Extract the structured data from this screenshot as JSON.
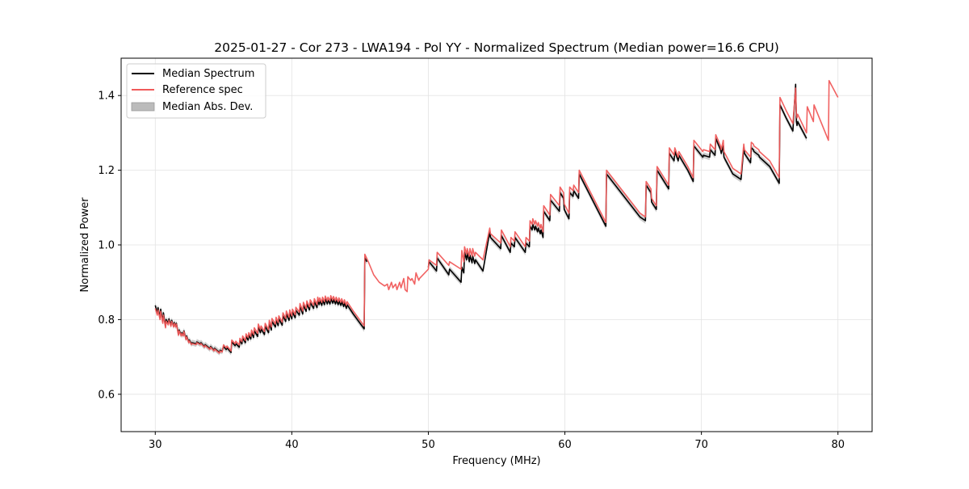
{
  "chart_data": {
    "type": "line",
    "title": "2025-01-27 - Cor 273 - LWA194 - Pol YY - Normalized Spectrum (Median power=16.6 CPU)",
    "xlabel": "Frequency (MHz)",
    "ylabel": "Normalized Power",
    "xlim": [
      27.5,
      82.5
    ],
    "ylim": [
      0.5,
      1.5
    ],
    "xticks": [
      30,
      40,
      50,
      60,
      70,
      80
    ],
    "yticks": [
      0.6,
      0.8,
      1.0,
      1.2,
      1.4
    ],
    "xtick_labels": [
      "30",
      "40",
      "50",
      "60",
      "70",
      "80"
    ],
    "ytick_labels": [
      "0.6",
      "0.8",
      "1.0",
      "1.2",
      "1.4"
    ],
    "grid": true,
    "legend_position": "top-left",
    "colors": {
      "median": "#000000",
      "reference": "#f05a5a",
      "mad": "#bbbbbb"
    },
    "legend": [
      {
        "label": "Median Spectrum",
        "style": "line",
        "color": "#000000"
      },
      {
        "label": "Reference spec",
        "style": "line",
        "color": "#f05a5a"
      },
      {
        "label": "Median Abs. Dev.",
        "style": "patch",
        "color": "#bbbbbb"
      }
    ],
    "series": [
      {
        "name": "Median Spectrum",
        "x": [
          30.0,
          30.15,
          30.2,
          30.35,
          30.4,
          30.55,
          30.6,
          30.75,
          30.8,
          30.95,
          31.0,
          31.15,
          31.2,
          31.35,
          31.4,
          31.5,
          31.55,
          31.7,
          31.75,
          31.9,
          31.95,
          32.05,
          32.1,
          32.25,
          32.3,
          32.45,
          32.5,
          32.65,
          32.7,
          33.0,
          33.05,
          33.3,
          33.35,
          33.6,
          33.65,
          34.0,
          34.05,
          34.3,
          34.35,
          34.7,
          34.75,
          34.9,
          35.0,
          35.2,
          35.25,
          35.55,
          35.6,
          35.85,
          35.9,
          36.15,
          36.2,
          36.35,
          36.4,
          36.6,
          36.65,
          36.8,
          36.85,
          37.0,
          37.05,
          37.2,
          37.25,
          37.5,
          37.55,
          37.7,
          37.75,
          38.0,
          38.05,
          38.3,
          38.35,
          38.5,
          38.55,
          38.8,
          38.85,
          39.0,
          39.05,
          39.3,
          39.35,
          39.55,
          39.6,
          39.8,
          39.85,
          40.0,
          40.05,
          40.25,
          40.3,
          40.55,
          40.6,
          40.8,
          40.85,
          41.05,
          41.1,
          41.3,
          41.35,
          41.6,
          41.65,
          41.85,
          41.9,
          42.0,
          42.05,
          42.2,
          42.25,
          42.4,
          42.45,
          42.6,
          42.65,
          42.8,
          42.85,
          43.0,
          43.05,
          43.2,
          43.25,
          43.4,
          43.45,
          43.6,
          43.65,
          43.8,
          43.85,
          44.0,
          44.05,
          44.5,
          45.0,
          45.3,
          45.35,
          45.5
        ],
        "y": [
          0.838,
          0.818,
          0.832,
          0.805,
          0.828,
          0.795,
          0.818,
          0.782,
          0.8,
          0.79,
          0.802,
          0.785,
          0.798,
          0.782,
          0.792,
          0.782,
          0.79,
          0.76,
          0.772,
          0.758,
          0.765,
          0.758,
          0.77,
          0.748,
          0.756,
          0.74,
          0.745,
          0.735,
          0.738,
          0.735,
          0.74,
          0.735,
          0.738,
          0.728,
          0.733,
          0.722,
          0.728,
          0.718,
          0.723,
          0.712,
          0.718,
          0.715,
          0.728,
          0.72,
          0.725,
          0.712,
          0.74,
          0.73,
          0.736,
          0.726,
          0.744,
          0.735,
          0.75,
          0.738,
          0.755,
          0.745,
          0.758,
          0.748,
          0.765,
          0.752,
          0.77,
          0.755,
          0.78,
          0.765,
          0.775,
          0.76,
          0.782,
          0.765,
          0.79,
          0.772,
          0.795,
          0.78,
          0.798,
          0.784,
          0.802,
          0.785,
          0.81,
          0.795,
          0.815,
          0.798,
          0.818,
          0.802,
          0.82,
          0.805,
          0.825,
          0.812,
          0.835,
          0.815,
          0.838,
          0.822,
          0.842,
          0.826,
          0.845,
          0.83,
          0.848,
          0.832,
          0.852,
          0.84,
          0.85,
          0.838,
          0.852,
          0.84,
          0.855,
          0.842,
          0.852,
          0.842,
          0.856,
          0.844,
          0.854,
          0.842,
          0.852,
          0.84,
          0.85,
          0.838,
          0.848,
          0.835,
          0.845,
          0.83,
          0.84,
          0.815,
          0.79,
          0.775,
          0.965,
          0.955
        ],
        "x2": [
          50.0,
          50.05,
          50.6,
          50.65,
          51.5,
          51.55,
          52.4,
          52.45,
          52.6,
          52.65,
          52.8,
          52.85,
          53.0,
          53.05,
          53.2,
          53.25,
          53.4,
          53.45,
          54.0,
          54.5,
          54.55,
          55.3,
          55.35,
          56.0,
          56.05,
          56.3,
          56.35,
          57.1,
          57.15,
          57.4,
          57.45,
          57.6,
          57.65,
          57.8,
          57.85,
          58.0,
          58.05,
          58.2,
          58.25,
          58.4,
          58.45,
          58.9,
          58.95,
          59.6,
          59.65,
          59.9,
          59.95,
          60.3,
          60.35,
          60.6,
          60.65,
          61.0,
          61.05,
          63.0,
          63.05,
          65.5,
          65.9,
          65.95,
          66.3,
          66.35,
          66.7,
          66.75,
          67.6,
          67.65,
          68.0,
          68.05,
          68.3,
          68.35,
          69.0,
          69.4,
          69.45,
          70.1,
          70.15,
          70.6,
          70.65,
          71.0,
          71.05,
          71.4,
          71.45,
          71.6,
          71.65,
          72.3,
          72.9,
          73.1,
          73.15,
          73.6,
          73.65,
          73.8,
          73.85,
          74.2,
          74.25,
          75.0,
          75.7,
          75.75,
          76.2,
          76.7,
          76.9,
          76.95,
          77.0,
          77.05,
          77.7
        ],
        "y2": [
          0.94,
          0.955,
          0.93,
          0.965,
          0.92,
          0.935,
          0.9,
          0.94,
          0.925,
          0.98,
          0.96,
          0.978,
          0.955,
          0.972,
          0.952,
          0.97,
          0.95,
          0.96,
          0.93,
          1.035,
          1.02,
          0.99,
          1.025,
          0.98,
          1.005,
          0.995,
          1.02,
          0.98,
          1.005,
          0.995,
          1.05,
          1.04,
          1.055,
          1.04,
          1.05,
          1.035,
          1.045,
          1.03,
          1.04,
          1.02,
          1.09,
          1.065,
          1.12,
          1.09,
          1.14,
          1.125,
          1.095,
          1.07,
          1.14,
          1.13,
          1.145,
          1.125,
          1.19,
          1.05,
          1.19,
          1.075,
          1.065,
          1.16,
          1.14,
          1.115,
          1.095,
          1.2,
          1.15,
          1.245,
          1.225,
          1.25,
          1.225,
          1.24,
          1.2,
          1.17,
          1.265,
          1.235,
          1.24,
          1.235,
          1.255,
          1.24,
          1.285,
          1.255,
          1.245,
          1.265,
          1.235,
          1.19,
          1.175,
          1.26,
          1.245,
          1.22,
          1.26,
          1.255,
          1.25,
          1.24,
          1.235,
          1.21,
          1.165,
          1.375,
          1.34,
          1.305,
          1.43,
          1.33,
          1.32,
          1.33,
          1.285
        ]
      },
      {
        "name": "Reference spec",
        "x": [
          30.0,
          30.15,
          30.2,
          30.35,
          30.4,
          30.55,
          30.6,
          30.75,
          30.8,
          30.95,
          31.0,
          31.15,
          31.2,
          31.35,
          31.4,
          31.5,
          31.55,
          31.7,
          31.75,
          31.9,
          31.95,
          32.05,
          32.1,
          32.25,
          32.3,
          32.45,
          32.5,
          32.65,
          32.7,
          33.0,
          33.05,
          33.3,
          33.35,
          33.6,
          33.65,
          34.0,
          34.05,
          34.3,
          34.35,
          34.7,
          34.75,
          34.9,
          35.0,
          35.2,
          35.25,
          35.55,
          35.6,
          35.85,
          35.9,
          36.15,
          36.2,
          36.35,
          36.4,
          36.6,
          36.65,
          36.8,
          36.85,
          37.0,
          37.05,
          37.2,
          37.25,
          37.5,
          37.55,
          37.7,
          37.75,
          38.0,
          38.05,
          38.3,
          38.35,
          38.5,
          38.55,
          38.8,
          38.85,
          39.0,
          39.05,
          39.3,
          39.35,
          39.55,
          39.6,
          39.8,
          39.85,
          40.0,
          40.05,
          40.25,
          40.3,
          40.55,
          40.6,
          40.8,
          40.85,
          41.05,
          41.1,
          41.3,
          41.35,
          41.6,
          41.65,
          41.85,
          41.9,
          42.0,
          42.05,
          42.2,
          42.25,
          42.4,
          42.45,
          42.6,
          42.65,
          42.8,
          42.85,
          43.0,
          43.05,
          43.2,
          43.25,
          43.4,
          43.45,
          43.6,
          43.65,
          43.8,
          43.85,
          44.0,
          44.05,
          44.5,
          45.0,
          45.3,
          45.35,
          45.6,
          46.0,
          46.4,
          46.8,
          47.0,
          47.1,
          47.3,
          47.4,
          47.6,
          47.7,
          47.9,
          48.0,
          48.2,
          48.3,
          48.45,
          48.5,
          48.7,
          48.8,
          49.0,
          49.1,
          49.3,
          49.35,
          50.0,
          50.05,
          50.6,
          50.65,
          51.5,
          51.55,
          52.4,
          52.45,
          52.6,
          52.65,
          52.8,
          52.85,
          53.0,
          53.05,
          53.2,
          53.25,
          53.4,
          53.45,
          54.0,
          54.5,
          54.55,
          55.3,
          55.35,
          56.0,
          56.05,
          56.3,
          56.35,
          57.1,
          57.15,
          57.4,
          57.45,
          57.6,
          57.65,
          57.8,
          57.85,
          58.0,
          58.05,
          58.2,
          58.25,
          58.4,
          58.45,
          58.9,
          58.95,
          59.6,
          59.65,
          59.9,
          59.95,
          60.3,
          60.35,
          60.6,
          60.65,
          61.0,
          61.05,
          63.0,
          63.05,
          65.5,
          65.9,
          65.95,
          66.3,
          66.35,
          66.7,
          66.75,
          67.6,
          67.65,
          68.0,
          68.05,
          68.3,
          68.35,
          69.0,
          69.4,
          69.45,
          70.1,
          70.15,
          70.6,
          70.65,
          71.0,
          71.05,
          71.4,
          71.45,
          71.6,
          71.65,
          72.3,
          72.9,
          73.1,
          73.15,
          73.6,
          73.65,
          73.8,
          73.85,
          74.2,
          74.25,
          75.0,
          75.7,
          75.75,
          76.2,
          76.7,
          76.9,
          76.95,
          77.0,
          77.05,
          77.7,
          77.75,
          78.2,
          78.25,
          79.3,
          79.35,
          80.0
        ],
        "y": [
          0.83,
          0.812,
          0.826,
          0.8,
          0.822,
          0.79,
          0.812,
          0.778,
          0.796,
          0.786,
          0.798,
          0.782,
          0.795,
          0.78,
          0.79,
          0.78,
          0.788,
          0.758,
          0.77,
          0.756,
          0.763,
          0.756,
          0.768,
          0.746,
          0.754,
          0.738,
          0.743,
          0.733,
          0.736,
          0.733,
          0.738,
          0.733,
          0.736,
          0.726,
          0.731,
          0.72,
          0.726,
          0.716,
          0.721,
          0.71,
          0.716,
          0.713,
          0.732,
          0.724,
          0.729,
          0.716,
          0.745,
          0.735,
          0.742,
          0.732,
          0.75,
          0.741,
          0.756,
          0.744,
          0.762,
          0.752,
          0.765,
          0.755,
          0.772,
          0.76,
          0.778,
          0.763,
          0.788,
          0.773,
          0.783,
          0.768,
          0.79,
          0.773,
          0.798,
          0.78,
          0.803,
          0.788,
          0.806,
          0.792,
          0.81,
          0.793,
          0.818,
          0.803,
          0.823,
          0.806,
          0.826,
          0.81,
          0.828,
          0.813,
          0.833,
          0.82,
          0.843,
          0.823,
          0.846,
          0.83,
          0.85,
          0.834,
          0.853,
          0.838,
          0.856,
          0.84,
          0.86,
          0.848,
          0.858,
          0.846,
          0.86,
          0.848,
          0.863,
          0.85,
          0.86,
          0.85,
          0.864,
          0.852,
          0.862,
          0.85,
          0.86,
          0.848,
          0.858,
          0.846,
          0.856,
          0.843,
          0.853,
          0.838,
          0.848,
          0.823,
          0.798,
          0.783,
          0.975,
          0.955,
          0.92,
          0.9,
          0.89,
          0.895,
          0.88,
          0.9,
          0.885,
          0.895,
          0.88,
          0.9,
          0.885,
          0.91,
          0.88,
          0.875,
          0.915,
          0.905,
          0.91,
          0.895,
          0.925,
          0.905,
          0.91,
          0.935,
          0.96,
          0.945,
          0.98,
          0.945,
          0.955,
          0.935,
          0.985,
          0.955,
          0.995,
          0.975,
          0.99,
          0.97,
          0.99,
          0.97,
          0.99,
          0.97,
          0.98,
          0.96,
          1.045,
          1.03,
          1.005,
          1.04,
          0.995,
          1.02,
          1.01,
          1.035,
          0.995,
          1.02,
          1.01,
          1.065,
          1.055,
          1.07,
          1.055,
          1.065,
          1.05,
          1.06,
          1.045,
          1.055,
          1.035,
          1.105,
          1.08,
          1.135,
          1.105,
          1.155,
          1.14,
          1.11,
          1.085,
          1.155,
          1.145,
          1.16,
          1.14,
          1.2,
          1.06,
          1.2,
          1.085,
          1.075,
          1.17,
          1.15,
          1.125,
          1.105,
          1.21,
          1.16,
          1.26,
          1.24,
          1.26,
          1.235,
          1.25,
          1.21,
          1.18,
          1.28,
          1.25,
          1.255,
          1.25,
          1.27,
          1.255,
          1.295,
          1.265,
          1.255,
          1.28,
          1.25,
          1.205,
          1.19,
          1.27,
          1.255,
          1.235,
          1.275,
          1.27,
          1.265,
          1.255,
          1.25,
          1.225,
          1.18,
          1.395,
          1.36,
          1.325,
          1.42,
          1.35,
          1.34,
          1.35,
          1.3,
          1.37,
          1.33,
          1.375,
          1.28,
          1.44,
          1.395
        ]
      }
    ]
  }
}
